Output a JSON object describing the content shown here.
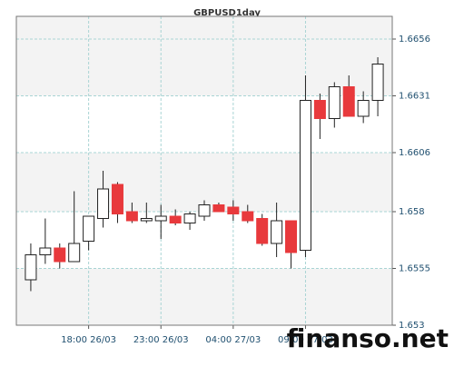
{
  "chart_data": {
    "type": "candlestick",
    "title": "GBPUSD1day",
    "categories": [
      null,
      null,
      null,
      null,
      "18:00 26/03",
      null,
      null,
      null,
      null,
      "23:00 26/03",
      null,
      null,
      null,
      null,
      "04:00 27/03",
      null,
      null,
      null,
      null,
      "09:00 27/03",
      null,
      null,
      null,
      null,
      null
    ],
    "open": [
      1.655,
      1.6561,
      1.6564,
      1.6558,
      1.6567,
      1.6577,
      1.6592,
      1.658,
      1.6576,
      1.6576,
      1.6578,
      1.6575,
      1.6578,
      1.6583,
      1.6582,
      1.658,
      1.6577,
      1.6566,
      1.6576,
      1.6563,
      1.6629,
      1.6621,
      1.6635,
      1.6622,
      1.6629
    ],
    "high": [
      1.6566,
      1.6577,
      1.6566,
      1.6589,
      1.6578,
      1.6598,
      1.6593,
      1.6584,
      1.6584,
      1.6583,
      1.6581,
      1.658,
      1.6585,
      1.6584,
      1.6585,
      1.6583,
      1.6579,
      1.6584,
      1.6576,
      1.664,
      1.6632,
      1.6637,
      1.664,
      1.6633,
      1.6648
    ],
    "low": [
      1.6545,
      1.6557,
      1.6555,
      1.6558,
      1.6563,
      1.6573,
      1.6575,
      1.6575,
      1.6575,
      1.6568,
      1.6574,
      1.6572,
      1.6576,
      1.658,
      1.6576,
      1.6575,
      1.6565,
      1.656,
      1.6555,
      1.656,
      1.6612,
      1.6617,
      1.6622,
      1.6619,
      1.6622
    ],
    "close": [
      1.6561,
      1.6564,
      1.6558,
      1.6566,
      1.6578,
      1.659,
      1.6579,
      1.6576,
      1.6577,
      1.6578,
      1.6575,
      1.6579,
      1.6583,
      1.658,
      1.6579,
      1.6576,
      1.6566,
      1.6576,
      1.6562,
      1.6629,
      1.6621,
      1.6635,
      1.6622,
      1.6629,
      1.6645
    ],
    "up_color": "#ffffff",
    "down_color": "#e8393c",
    "ylim": [
      1.653,
      1.6666
    ],
    "yticks": [
      1.653,
      1.6555,
      1.658,
      1.6606,
      1.6631,
      1.6656
    ],
    "grid": true,
    "watermark": "finanso.net"
  }
}
